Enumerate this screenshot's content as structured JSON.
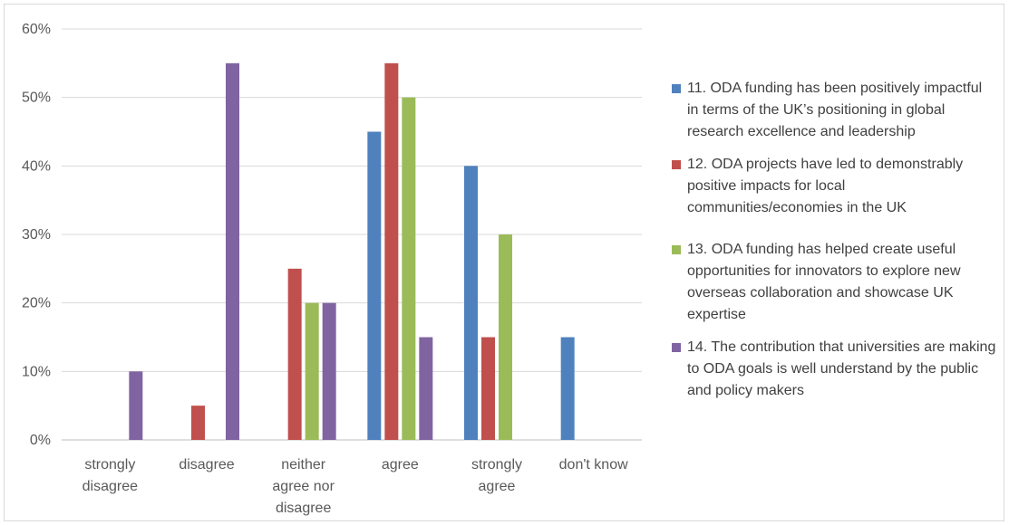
{
  "chart_data": {
    "type": "bar",
    "categories": [
      [
        "strongly",
        "disagree"
      ],
      [
        "disagree"
      ],
      [
        "neither",
        "agree nor",
        "disagree"
      ],
      [
        "agree"
      ],
      [
        "strongly",
        "agree"
      ],
      [
        "don't know"
      ]
    ],
    "series": [
      {
        "name": "11. ODA funding has been positively impactful in terms of the UK’s positioning in global research excellence and leadership",
        "color": "#4f81bd",
        "values": [
          0,
          0,
          0,
          45,
          40,
          15
        ]
      },
      {
        "name": "12. ODA projects have led to demonstrably positive impacts for local communities/economies in the UK",
        "color": "#c0504d",
        "values": [
          0,
          5,
          25,
          55,
          15,
          0
        ]
      },
      {
        "name": "13. ODA funding has helped create useful opportunities for innovators to explore new overseas collaboration and showcase UK expertise",
        "color": "#9bbb59",
        "values": [
          0,
          0,
          20,
          50,
          30,
          0
        ]
      },
      {
        "name": "14. The contribution that universities are making to ODA goals is well understand by the public and policy makers",
        "color": "#8064a2",
        "values": [
          10,
          55,
          20,
          15,
          0,
          0
        ]
      }
    ],
    "y_ticks": [
      "0%",
      "10%",
      "20%",
      "30%",
      "40%",
      "50%",
      "60%"
    ],
    "ylim": [
      0,
      60
    ],
    "grid": true,
    "legend_position": "right"
  }
}
